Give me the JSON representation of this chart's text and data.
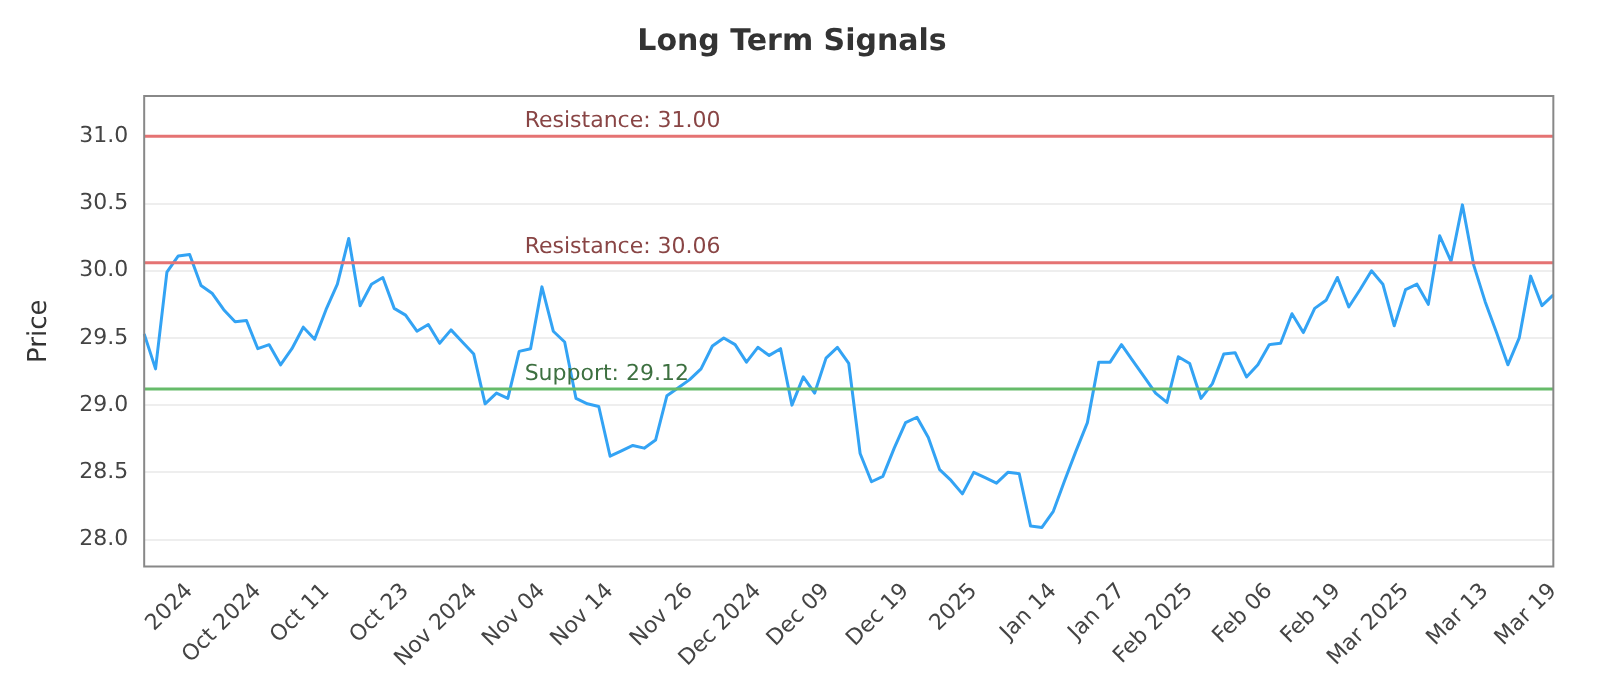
{
  "chart_data": {
    "type": "line",
    "title": "Long Term Signals",
    "ylabel": "Price",
    "categories": [
      null,
      null,
      null,
      null,
      "2024",
      null,
      null,
      null,
      null,
      null,
      "Oct 2024",
      null,
      null,
      null,
      null,
      null,
      "Oct 11",
      null,
      null,
      null,
      null,
      null,
      null,
      "Oct 23",
      null,
      null,
      null,
      null,
      null,
      "Nov 2024",
      null,
      null,
      null,
      null,
      null,
      "Nov 04",
      null,
      null,
      null,
      null,
      null,
      "Nov 14",
      null,
      null,
      null,
      null,
      null,
      null,
      "Nov 26",
      null,
      null,
      null,
      null,
      null,
      "Dec 2024",
      null,
      null,
      null,
      null,
      null,
      "Dec 09",
      null,
      null,
      null,
      null,
      null,
      null,
      "Dec 19",
      null,
      null,
      null,
      null,
      null,
      "2025",
      null,
      null,
      null,
      null,
      null,
      null,
      "Jan 14",
      null,
      null,
      null,
      null,
      null,
      "Jan 27",
      null,
      null,
      null,
      null,
      null,
      "Feb 2025",
      null,
      null,
      null,
      null,
      null,
      null,
      "Feb 06",
      null,
      null,
      null,
      null,
      null,
      "Feb 19",
      null,
      null,
      null,
      null,
      null,
      "Mar 2025",
      null,
      null,
      null,
      null,
      null,
      null,
      "Mar 13",
      null,
      null,
      null,
      null,
      null,
      "Mar 19"
    ],
    "series": [
      {
        "color": "#33a3f4",
        "values": [
          29.53,
          29.27,
          29.99,
          30.11,
          30.12,
          29.89,
          29.83,
          29.71,
          29.62,
          29.63,
          29.42,
          29.45,
          29.3,
          29.42,
          29.58,
          29.49,
          29.71,
          29.9,
          30.24,
          29.74,
          29.9,
          29.95,
          29.72,
          29.67,
          29.55,
          29.6,
          29.46,
          29.56,
          29.47,
          29.38,
          29.01,
          29.09,
          29.05,
          29.4,
          29.42,
          29.88,
          29.55,
          29.47,
          29.05,
          29.01,
          28.99,
          28.62,
          28.66,
          28.7,
          28.68,
          28.74,
          29.07,
          29.13,
          29.19,
          29.27,
          29.44,
          29.5,
          29.45,
          29.32,
          29.43,
          29.37,
          29.42,
          29.0,
          29.21,
          29.09,
          29.35,
          29.43,
          29.31,
          28.64,
          28.43,
          28.47,
          28.68,
          28.87,
          28.91,
          28.76,
          28.52,
          28.44,
          28.34,
          28.5,
          28.46,
          28.42,
          28.5,
          28.49,
          28.1,
          28.09,
          28.21,
          28.44,
          28.66,
          28.87,
          29.32,
          29.32,
          29.45,
          29.33,
          29.21,
          29.09,
          29.02,
          29.36,
          29.31,
          29.05,
          29.16,
          29.38,
          29.39,
          29.21,
          29.3,
          29.45,
          29.46,
          29.68,
          29.54,
          29.72,
          29.78,
          29.95,
          29.73,
          29.86,
          30.0,
          29.9,
          29.59,
          29.86,
          29.9,
          29.75,
          30.26,
          30.07,
          30.49,
          30.04,
          29.77,
          29.54,
          29.3,
          29.5,
          29.96,
          29.74,
          29.82
        ]
      }
    ],
    "ylim": [
      27.8,
      31.3
    ],
    "yticks": [
      {
        "value": 28,
        "label": "28.0"
      },
      {
        "value": 28.5,
        "label": "28.5"
      },
      {
        "value": 29,
        "label": "29.0"
      },
      {
        "value": 29.5,
        "label": "29.5"
      },
      {
        "value": 30,
        "label": "30.0"
      },
      {
        "value": 30.5,
        "label": "30.5"
      },
      {
        "value": 31,
        "label": "31.0"
      }
    ],
    "ref_lines": [
      {
        "axis": "y",
        "value": 31.0,
        "label": "Resistance: 31.00",
        "color": "#e57373"
      },
      {
        "axis": "y",
        "value": 30.06,
        "label": "Resistance: 30.06",
        "color": "#e57373"
      },
      {
        "axis": "y",
        "value": 29.12,
        "label": "Support: 29.12",
        "color": "#66bb6a"
      }
    ],
    "grid": "y",
    "legend": false,
    "marker": "none",
    "line_style": "solid"
  }
}
